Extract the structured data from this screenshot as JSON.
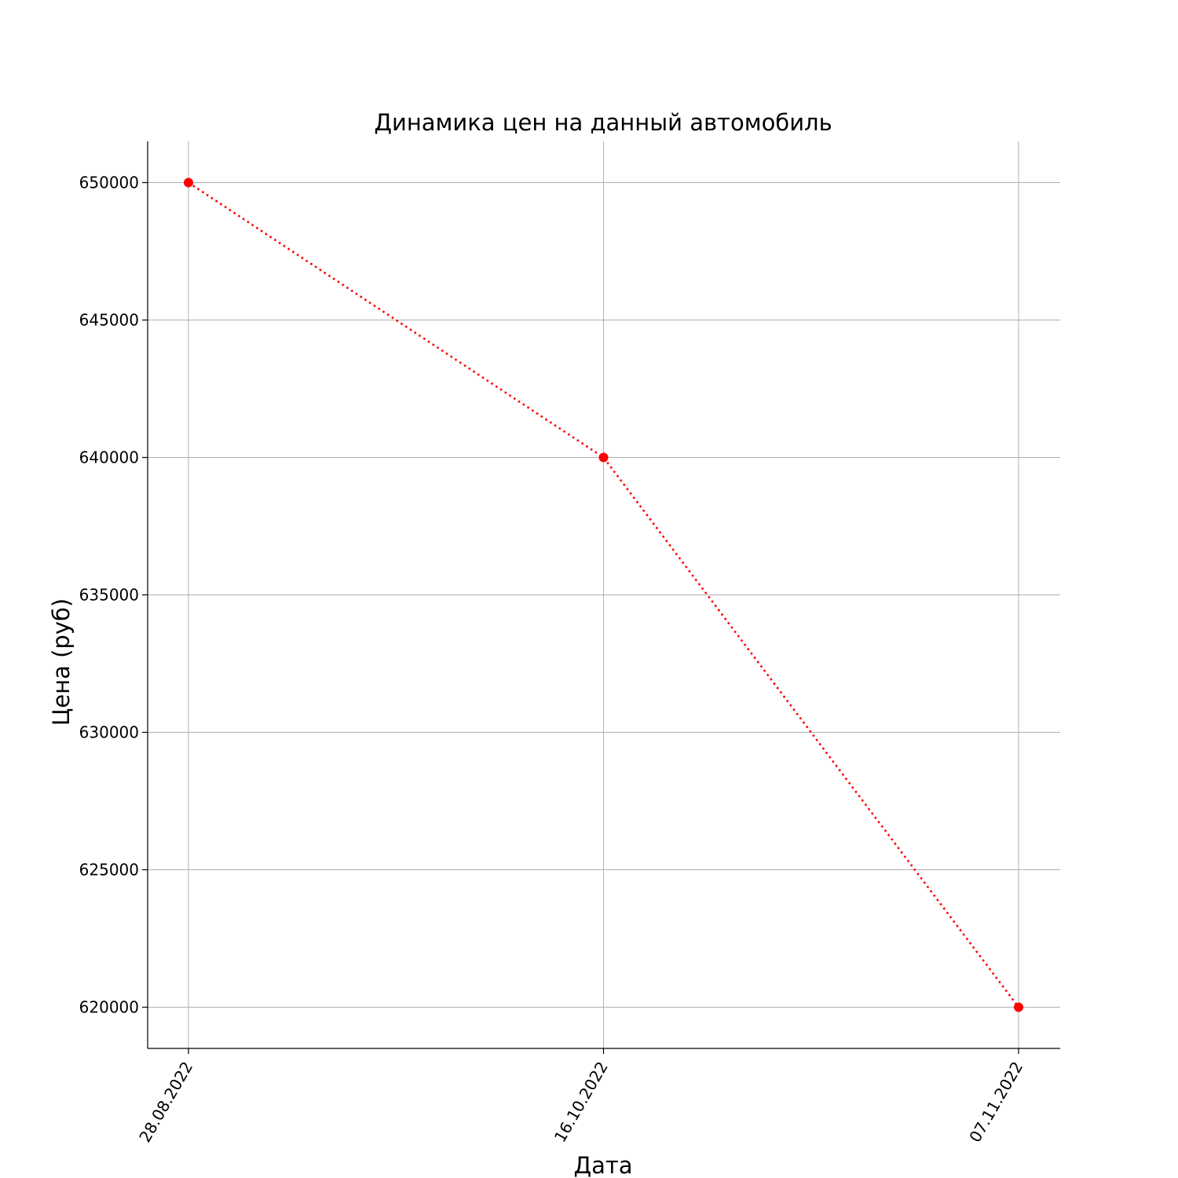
{
  "chart_data": {
    "type": "line",
    "title": "Динамика цен на данный автомобиль",
    "xlabel": "Дата",
    "ylabel": "Цена (руб)",
    "categories": [
      "28.08.2022",
      "16.10.2022",
      "07.11.2022"
    ],
    "series": [
      {
        "values": [
          650000,
          640000,
          620000
        ],
        "color": "#ff0000",
        "line_style": "dotted",
        "marker": "circle"
      }
    ],
    "yticks": [
      620000,
      625000,
      630000,
      635000,
      640000,
      645000,
      650000
    ],
    "ylim": [
      618500,
      651500
    ],
    "grid": true,
    "x_tick_rotation": 60,
    "colors": {
      "series": "#ff0000",
      "grid": "#b0b0b0",
      "axis": "#000000"
    }
  }
}
